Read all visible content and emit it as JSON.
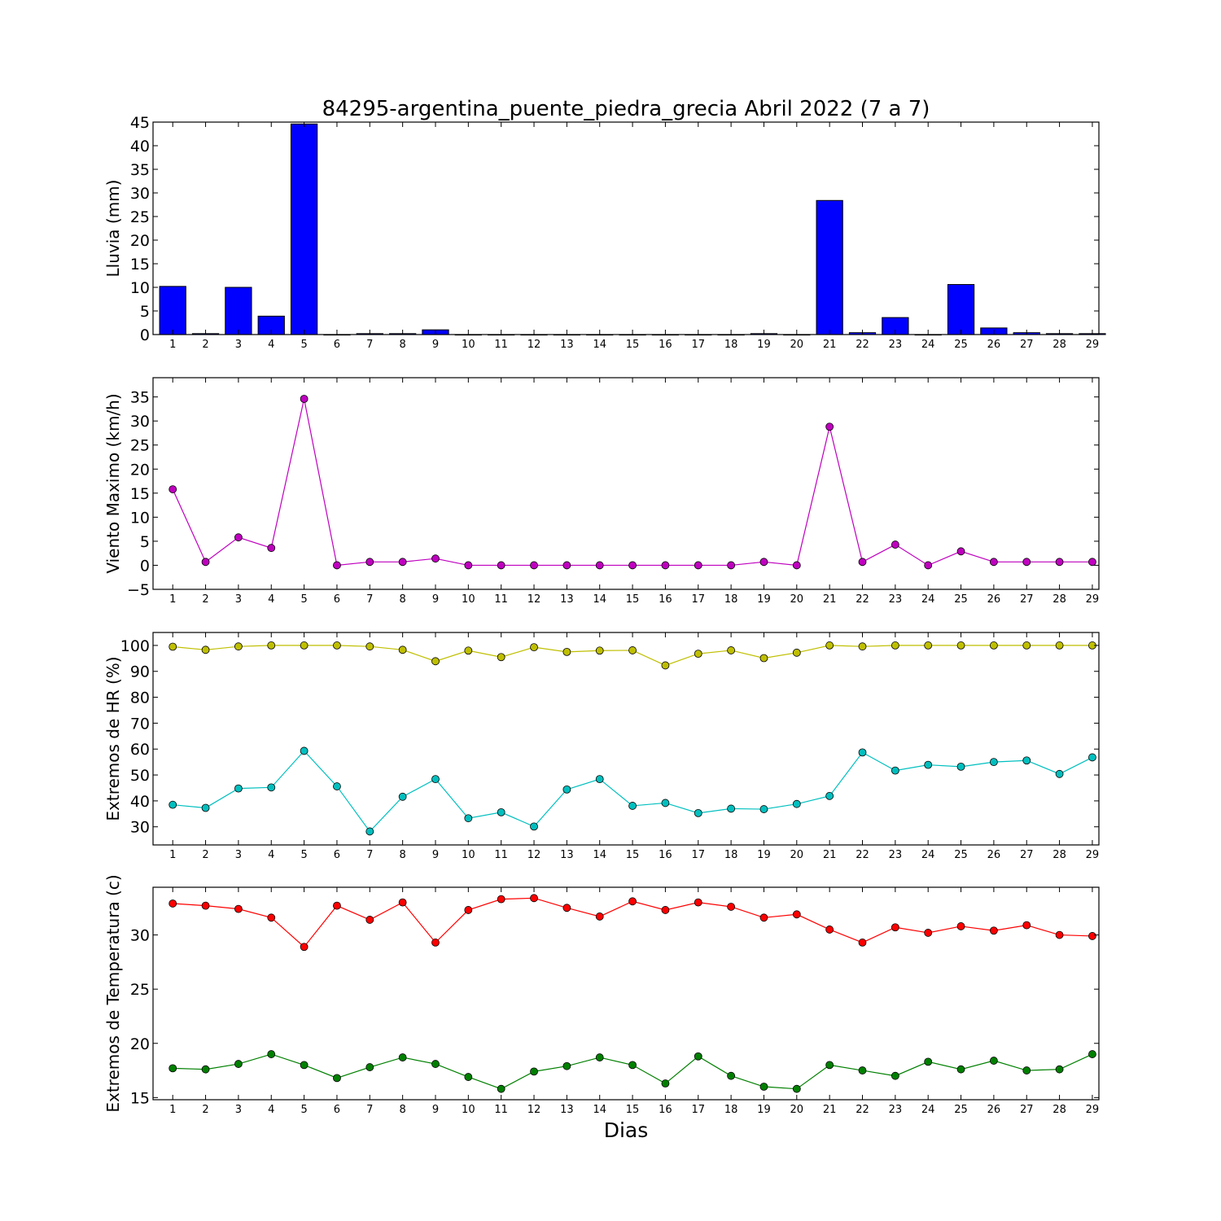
{
  "figure": {
    "title": "84295-argentina_puente_piedra_grecia Abril 2022  (7 a 7)",
    "xlabel": "Dias"
  },
  "chart_data": [
    {
      "type": "bar",
      "ylabel": "Lluvia (mm)",
      "ylim": [
        0,
        45
      ],
      "yticks": [
        0,
        5,
        10,
        15,
        20,
        25,
        30,
        35,
        40,
        45
      ],
      "x": [
        1,
        2,
        3,
        4,
        5,
        6,
        7,
        8,
        9,
        10,
        11,
        12,
        13,
        14,
        15,
        16,
        17,
        18,
        19,
        20,
        21,
        22,
        23,
        24,
        25,
        26,
        27,
        28,
        29
      ],
      "series": [
        {
          "color": "#0000ff",
          "values": [
            10.2,
            0.2,
            10.0,
            3.9,
            44.6,
            0.0,
            0.2,
            0.2,
            1.0,
            0.0,
            0.0,
            0.0,
            0.0,
            0.0,
            0.0,
            0.0,
            0.0,
            0.0,
            0.2,
            0.0,
            28.4,
            0.4,
            3.6,
            0.0,
            10.6,
            1.4,
            0.4,
            0.2,
            0.2
          ]
        }
      ]
    },
    {
      "type": "line",
      "ylabel": "Viento Maximo (km/h)",
      "ylim": [
        -5,
        39
      ],
      "yticks": [
        -5,
        0,
        5,
        10,
        15,
        20,
        25,
        30,
        35
      ],
      "x": [
        1,
        2,
        3,
        4,
        5,
        6,
        7,
        8,
        9,
        10,
        11,
        12,
        13,
        14,
        15,
        16,
        17,
        18,
        19,
        20,
        21,
        22,
        23,
        24,
        25,
        26,
        27,
        28,
        29
      ],
      "series": [
        {
          "color": "#bf00bf",
          "values": [
            15.8,
            0.7,
            5.8,
            3.6,
            34.6,
            0.0,
            0.7,
            0.7,
            1.4,
            0.0,
            0.0,
            0.0,
            0.0,
            0.0,
            0.0,
            0.0,
            0.0,
            0.0,
            0.7,
            0.0,
            28.8,
            0.7,
            4.3,
            0.0,
            2.9,
            0.7,
            0.7,
            0.7,
            0.7
          ]
        }
      ]
    },
    {
      "type": "line",
      "ylabel": "Extremos de HR (%)",
      "ylim": [
        23,
        105
      ],
      "yticks": [
        30,
        40,
        50,
        60,
        70,
        80,
        90,
        100
      ],
      "x": [
        1,
        2,
        3,
        4,
        5,
        6,
        7,
        8,
        9,
        10,
        11,
        12,
        13,
        14,
        15,
        16,
        17,
        18,
        19,
        20,
        21,
        22,
        23,
        24,
        25,
        26,
        27,
        28,
        29
      ],
      "series": [
        {
          "color": "#bfbf00",
          "values": [
            99.5,
            98.3,
            99.6,
            100,
            100,
            100,
            99.6,
            98.3,
            93.9,
            98.0,
            95.5,
            99.3,
            97.5,
            98.0,
            98.1,
            92.3,
            96.8,
            98.1,
            95.1,
            97.2,
            100,
            99.6,
            100,
            100,
            100,
            100,
            100,
            100,
            100
          ]
        },
        {
          "color": "#00bfbf",
          "values": [
            38.5,
            37.3,
            44.8,
            45.2,
            59.3,
            45.6,
            28.2,
            41.6,
            48.4,
            33.3,
            35.6,
            30.1,
            44.4,
            48.4,
            38.1,
            39.2,
            35.3,
            37.0,
            36.8,
            38.8,
            41.9,
            58.7,
            51.7,
            53.9,
            53.2,
            55.0,
            55.6,
            50.4,
            56.8
          ]
        }
      ]
    },
    {
      "type": "line",
      "ylabel": "Extremos de Temperatura (c)",
      "ylim": [
        14.8,
        34.4
      ],
      "yticks": [
        15,
        20,
        25,
        30
      ],
      "x": [
        1,
        2,
        3,
        4,
        5,
        6,
        7,
        8,
        9,
        10,
        11,
        12,
        13,
        14,
        15,
        16,
        17,
        18,
        19,
        20,
        21,
        22,
        23,
        24,
        25,
        26,
        27,
        28,
        29
      ],
      "series": [
        {
          "color": "#ff0000",
          "values": [
            32.9,
            32.7,
            32.4,
            31.6,
            28.9,
            32.7,
            31.4,
            33.0,
            29.3,
            32.3,
            33.3,
            33.4,
            32.5,
            31.7,
            33.1,
            32.3,
            33.0,
            32.6,
            31.6,
            31.9,
            30.5,
            29.3,
            30.7,
            30.2,
            30.8,
            30.4,
            30.9,
            30.0,
            29.9
          ]
        },
        {
          "color": "#008000",
          "values": [
            17.7,
            17.6,
            18.1,
            19.0,
            18.0,
            16.8,
            17.8,
            18.7,
            18.1,
            16.9,
            15.8,
            17.4,
            17.9,
            18.7,
            18.0,
            16.3,
            18.8,
            17.0,
            16.0,
            15.8,
            18.0,
            17.5,
            17.0,
            18.3,
            17.6,
            18.4,
            17.5,
            17.6,
            19.0
          ]
        }
      ]
    }
  ]
}
